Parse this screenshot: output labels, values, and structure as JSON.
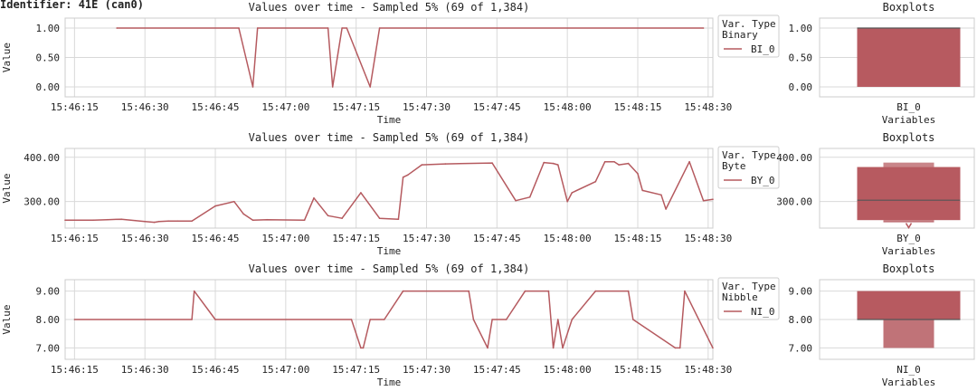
{
  "header": {
    "identifier": "Identifier: 41E (can0)"
  },
  "colors": {
    "line": "#b55a5f",
    "box_dark": "#b75a60",
    "box_light": "#d4959a",
    "median": "#555555",
    "grid": "#d9d9d9"
  },
  "chart_data": [
    {
      "type": "line",
      "title": "Values over time - Sampled 5% (69 of 1,384)",
      "xlabel": "Time",
      "ylabel": "Value",
      "xlim": [
        "15:46:13",
        "15:48:31"
      ],
      "xticks": [
        "15:46:15",
        "15:46:30",
        "15:46:45",
        "15:47:00",
        "15:47:15",
        "15:47:30",
        "15:47:45",
        "15:48:00",
        "15:48:15",
        "15:48:30"
      ],
      "ylim": [
        -0.17,
        1.17
      ],
      "yticks": [
        0.0,
        0.5,
        1.0
      ],
      "yticklabels": [
        "0.00",
        "0.50",
        "1.00"
      ],
      "legend": {
        "title_lines": [
          "Var. Type",
          "Binary"
        ],
        "placement": "outside-right",
        "entries": [
          "BI_0"
        ]
      },
      "grid": true,
      "series": [
        {
          "name": "BI_0",
          "x": [
            "15:46:24",
            "15:46:50",
            "15:46:53",
            "15:46:54",
            "15:47:09",
            "15:47:10",
            "15:47:12",
            "15:47:13",
            "15:47:18",
            "15:47:20",
            "15:48:29"
          ],
          "y": [
            1,
            1,
            0,
            1,
            1,
            0,
            1,
            1,
            0,
            1,
            1
          ]
        }
      ]
    },
    {
      "type": "box",
      "title": "Boxplots",
      "xlabel": "Variables",
      "categories": [
        "BI_0"
      ],
      "ylim": [
        -0.17,
        1.17
      ],
      "yticks": [
        0.0,
        0.5,
        1.0
      ],
      "yticklabels": [
        "0.00",
        "0.50",
        "1.00"
      ],
      "boxes": [
        {
          "name": "BI_0",
          "min": 0.0,
          "q1": 0.0,
          "median": 1.0,
          "q3": 1.0,
          "max": 1.0,
          "style": "letter-value"
        }
      ]
    },
    {
      "type": "line",
      "title": "Values over time - Sampled 5% (69 of 1,384)",
      "xlabel": "Time",
      "ylabel": "Value",
      "xlim": [
        "15:46:13",
        "15:48:31"
      ],
      "xticks": [
        "15:46:15",
        "15:46:30",
        "15:46:45",
        "15:47:00",
        "15:47:15",
        "15:47:30",
        "15:47:45",
        "15:48:00",
        "15:48:15",
        "15:48:30"
      ],
      "ylim": [
        240,
        420
      ],
      "yticks": [
        300,
        400
      ],
      "yticklabels": [
        "300.00",
        "400.00"
      ],
      "legend": {
        "title_lines": [
          "Var. Type",
          "Byte"
        ],
        "placement": "outside-right",
        "entries": [
          "BY_0"
        ]
      },
      "grid": true,
      "series": [
        {
          "name": "BY_0",
          "x": [
            "15:46:13",
            "15:46:19",
            "15:46:22",
            "15:46:25",
            "15:46:28",
            "15:46:30",
            "15:46:32",
            "15:46:33",
            "15:46:35",
            "15:46:37",
            "15:46:40",
            "15:46:45",
            "15:46:49",
            "15:46:51",
            "15:46:53",
            "15:46:56",
            "15:47:04",
            "15:47:06",
            "15:47:09",
            "15:47:12",
            "15:47:16",
            "15:47:20",
            "15:47:24",
            "15:47:25",
            "15:47:26",
            "15:47:29",
            "15:47:34",
            "15:47:44",
            "15:47:49",
            "15:47:52",
            "15:47:55",
            "15:47:57",
            "15:47:58",
            "15:48:00",
            "15:48:01",
            "15:48:06",
            "15:48:08",
            "15:48:10",
            "15:48:11",
            "15:48:13",
            "15:48:15",
            "15:48:16",
            "15:48:20",
            "15:48:21",
            "15:48:26",
            "15:48:29",
            "15:48:31"
          ],
          "y": [
            258,
            258,
            259,
            260,
            257,
            255,
            253,
            255,
            256,
            256,
            256,
            290,
            300,
            272,
            258,
            259,
            258,
            308,
            268,
            262,
            320,
            262,
            260,
            355,
            360,
            383,
            385,
            387,
            302,
            310,
            388,
            386,
            383,
            300,
            320,
            345,
            390,
            390,
            383,
            386,
            363,
            325,
            315,
            283,
            390,
            302,
            305
          ]
        }
      ]
    },
    {
      "type": "box",
      "title": "Boxplots",
      "xlabel": "Variables",
      "categories": [
        "BY_0"
      ],
      "ylim": [
        240,
        420
      ],
      "yticks": [
        300,
        400
      ],
      "yticklabels": [
        "300.00",
        "400.00"
      ],
      "boxes": [
        {
          "name": "BY_0",
          "min": 253,
          "q1": 258,
          "median": 303,
          "q3": 378,
          "max": 388,
          "outliers": [
            245
          ],
          "style": "letter-value"
        }
      ]
    },
    {
      "type": "line",
      "title": "Values over time - Sampled 5% (69 of 1,384)",
      "xlabel": "Time",
      "ylabel": "Value",
      "xlim": [
        "15:46:13",
        "15:48:31"
      ],
      "xticks": [
        "15:46:15",
        "15:46:30",
        "15:46:45",
        "15:47:00",
        "15:47:15",
        "15:47:30",
        "15:47:45",
        "15:48:00",
        "15:48:15",
        "15:48:30"
      ],
      "ylim": [
        6.6,
        9.4
      ],
      "yticks": [
        7.0,
        8.0,
        9.0
      ],
      "yticklabels": [
        "7.00",
        "8.00",
        "9.00"
      ],
      "legend": {
        "title_lines": [
          "Var. Type",
          "Nibble"
        ],
        "placement": "outside-right",
        "entries": [
          "NI_0"
        ]
      },
      "grid": true,
      "series": [
        {
          "name": "NI_0",
          "x": [
            "15:46:15",
            "15:46:40",
            "15:46:40.5",
            "15:46:45",
            "15:47:14",
            "15:47:16",
            "15:47:16.5",
            "15:47:18",
            "15:47:21",
            "15:47:25",
            "15:47:39",
            "15:47:40",
            "15:47:43",
            "15:47:44",
            "15:47:47",
            "15:47:51",
            "15:47:56",
            "15:47:57",
            "15:47:58",
            "15:47:59",
            "15:48:01",
            "15:48:06",
            "15:48:13",
            "15:48:14",
            "15:48:23",
            "15:48:24",
            "15:48:25",
            "15:48:31"
          ],
          "y": [
            8,
            8,
            9,
            8,
            8,
            7,
            7,
            8,
            8,
            9,
            9,
            8,
            7,
            8,
            8,
            9,
            9,
            7,
            8,
            7,
            8,
            9,
            9,
            8,
            7,
            7,
            9,
            7
          ]
        }
      ]
    },
    {
      "type": "box",
      "title": "Boxplots",
      "xlabel": "Variables",
      "categories": [
        "NI_0"
      ],
      "ylim": [
        6.6,
        9.4
      ],
      "yticks": [
        7.0,
        8.0,
        9.0
      ],
      "yticklabels": [
        "7.00",
        "8.00",
        "9.00"
      ],
      "boxes": [
        {
          "name": "NI_0",
          "min": 7.0,
          "q1": 8.0,
          "median": 8.0,
          "q3": 9.0,
          "max": 9.0,
          "style": "letter-value"
        }
      ]
    }
  ]
}
